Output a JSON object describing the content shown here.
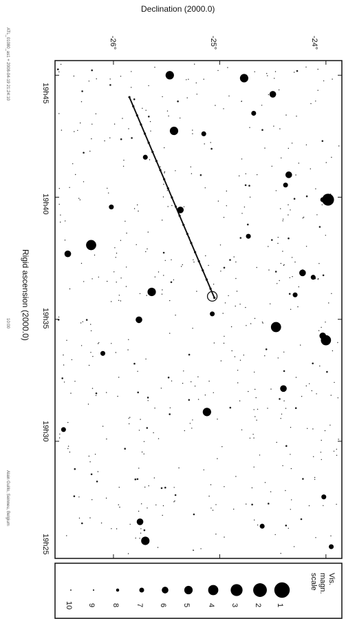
{
  "chart_data": {
    "type": "scatter",
    "title": "Declination (2000.0)",
    "xlabel": "Rigid ascension (2000.0)",
    "ylabel": "Declination (2000.0)",
    "ra_ticks": [
      "19h45",
      "19h40",
      "19h35",
      "19h30",
      "19h25"
    ],
    "dec_ticks": [
      "-26°",
      "-25°",
      "-24°"
    ],
    "ra_range_h": [
      19.42,
      19.76
    ],
    "dec_range_deg": [
      -26.55,
      -23.85
    ],
    "legend": {
      "title_lines": [
        "Vis.",
        "magn.",
        "scale"
      ],
      "magnitudes": [
        1,
        2,
        3,
        4,
        5,
        6,
        7,
        8,
        9,
        10
      ]
    },
    "track": {
      "points": [
        {
          "ra": 19.735,
          "dec": -25.85
        },
        {
          "ra": 19.598,
          "dec": -25.05
        }
      ],
      "marked_position": {
        "ra": 19.599,
        "dec": -25.07
      }
    },
    "stars": [
      {
        "ra": 19.75,
        "dec": -25.47,
        "mag": 5
      },
      {
        "ra": 19.748,
        "dec": -24.77,
        "mag": 5
      },
      {
        "ra": 19.737,
        "dec": -24.5,
        "mag": 6
      },
      {
        "ra": 19.712,
        "dec": -25.43,
        "mag": 5
      },
      {
        "ra": 19.71,
        "dec": -25.15,
        "mag": 7
      },
      {
        "ra": 19.682,
        "dec": -24.35,
        "mag": 6
      },
      {
        "ra": 19.675,
        "dec": -24.38,
        "mag": 7
      },
      {
        "ra": 19.665,
        "dec": -23.98,
        "mag": 3
      },
      {
        "ra": 19.658,
        "dec": -25.37,
        "mag": 6
      },
      {
        "ra": 19.634,
        "dec": -26.21,
        "mag": 4
      },
      {
        "ra": 19.628,
        "dec": -26.43,
        "mag": 6
      },
      {
        "ra": 19.615,
        "dec": -24.22,
        "mag": 6
      },
      {
        "ra": 19.612,
        "dec": -24.12,
        "mag": 7
      },
      {
        "ra": 19.602,
        "dec": -25.64,
        "mag": 5
      },
      {
        "ra": 19.6,
        "dec": -24.29,
        "mag": 7
      },
      {
        "ra": 19.587,
        "dec": -25.07,
        "mag": 7
      },
      {
        "ra": 19.583,
        "dec": -25.76,
        "mag": 6
      },
      {
        "ra": 19.578,
        "dec": -24.47,
        "mag": 4
      },
      {
        "ra": 19.572,
        "dec": -24.03,
        "mag": 6
      },
      {
        "ra": 19.569,
        "dec": -24.0,
        "mag": 4
      },
      {
        "ra": 19.536,
        "dec": -24.4,
        "mag": 6
      },
      {
        "ra": 19.52,
        "dec": -25.12,
        "mag": 5
      },
      {
        "ra": 19.508,
        "dec": -26.47,
        "mag": 7
      },
      {
        "ra": 19.462,
        "dec": -24.02,
        "mag": 7
      },
      {
        "ra": 19.445,
        "dec": -25.75,
        "mag": 6
      },
      {
        "ra": 19.442,
        "dec": -24.6,
        "mag": 7
      },
      {
        "ra": 19.432,
        "dec": -25.7,
        "mag": 5
      },
      {
        "ra": 19.428,
        "dec": -23.95,
        "mag": 7
      },
      {
        "ra": 19.694,
        "dec": -25.7,
        "mag": 7
      },
      {
        "ra": 19.665,
        "dec": -24.03,
        "mag": 7
      },
      {
        "ra": 19.64,
        "dec": -24.73,
        "mag": 7
      },
      {
        "ra": 19.56,
        "dec": -26.1,
        "mag": 7
      },
      {
        "ra": 19.66,
        "dec": -26.02,
        "mag": 7
      },
      {
        "ra": 19.724,
        "dec": -24.68,
        "mag": 7
      }
    ]
  },
  "side_notes": {
    "top": "ATL_01080_as1 + 2008-04-19 21:24:10",
    "middle": "10:00",
    "bottom": "Alain Guillo, Seinneu, Belgium"
  }
}
